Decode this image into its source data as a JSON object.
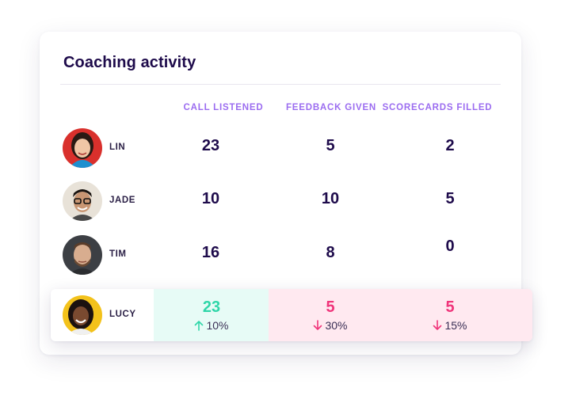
{
  "card": {
    "title": "Coaching activity"
  },
  "columns": [
    "CALL LISTENED",
    "FEEDBACK GIVEN",
    "SCORECARDS FILLED"
  ],
  "rows": [
    {
      "name": "LIN",
      "values": [
        "23",
        "5",
        "2"
      ]
    },
    {
      "name": "JADE",
      "values": [
        "10",
        "10",
        "5"
      ]
    },
    {
      "name": "TIM",
      "values": [
        "16",
        "8",
        "0"
      ]
    }
  ],
  "highlight": {
    "name": "LUCY",
    "cells": [
      {
        "value": "23",
        "delta": "10%",
        "direction": "up"
      },
      {
        "value": "5",
        "delta": "30%",
        "direction": "down"
      },
      {
        "value": "5",
        "delta": "15%",
        "direction": "down"
      }
    ]
  },
  "colors": {
    "title": "#1e0b4b",
    "header": "#9b6cf0",
    "up": "#2fd6a8",
    "down": "#f0347a",
    "green_bg": "#e7fbf6",
    "pink_bg": "#ffe9f0"
  }
}
